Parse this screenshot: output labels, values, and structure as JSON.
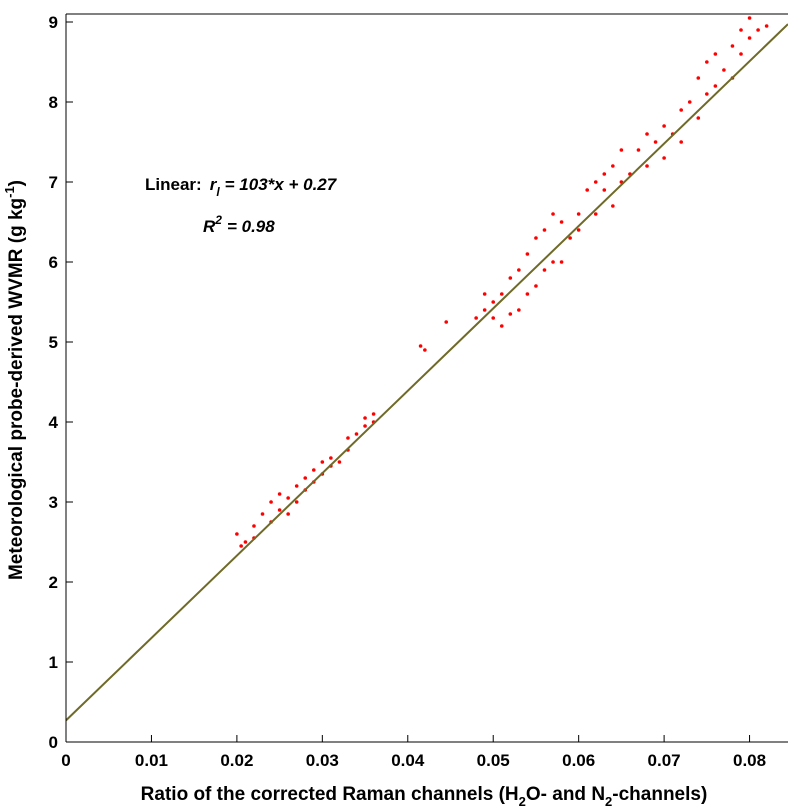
{
  "chart_data": {
    "type": "scatter",
    "x_label": [
      "Ratio of the corrected Raman channels (H",
      "2",
      "O- and N",
      "2",
      "-channels)"
    ],
    "y_label": [
      "Meteorological probe-derived WVMR (g kg",
      "-1",
      ")"
    ],
    "fit_label": {
      "prefix": "Linear:",
      "lhs": "r",
      "lhs_sub": "l",
      "rhs": "= 103*x + 0.27"
    },
    "r2_label": {
      "lhs": "R",
      "lhs_sup": "2",
      "rhs": "= 0.98"
    },
    "xlim": [
      0,
      0.0845
    ],
    "ylim": [
      0,
      9.1
    ],
    "xticks": [
      0,
      0.01,
      0.02,
      0.03,
      0.04,
      0.05,
      0.06,
      0.07,
      0.08
    ],
    "yticks": [
      0,
      1,
      2,
      3,
      4,
      5,
      6,
      7,
      8,
      9
    ],
    "fit": {
      "slope": 103,
      "intercept": 0.27,
      "color": "#6f6a28"
    },
    "series": [
      {
        "color": "#ff0000",
        "x": [
          0.02,
          0.0205,
          0.021,
          0.022,
          0.022,
          0.023,
          0.024,
          0.024,
          0.025,
          0.025,
          0.026,
          0.026,
          0.027,
          0.027,
          0.028,
          0.028,
          0.029,
          0.029,
          0.03,
          0.03,
          0.031,
          0.031,
          0.032,
          0.033,
          0.033,
          0.034,
          0.035,
          0.035,
          0.036,
          0.036,
          0.0415,
          0.042,
          0.0445,
          0.048,
          0.049,
          0.049,
          0.05,
          0.05,
          0.051,
          0.051,
          0.052,
          0.052,
          0.053,
          0.053,
          0.054,
          0.054,
          0.055,
          0.055,
          0.056,
          0.056,
          0.057,
          0.057,
          0.058,
          0.058,
          0.059,
          0.06,
          0.06,
          0.061,
          0.062,
          0.062,
          0.063,
          0.063,
          0.064,
          0.064,
          0.065,
          0.065,
          0.066,
          0.067,
          0.068,
          0.068,
          0.069,
          0.07,
          0.07,
          0.071,
          0.072,
          0.072,
          0.073,
          0.074,
          0.074,
          0.075,
          0.075,
          0.076,
          0.076,
          0.077,
          0.078,
          0.078,
          0.079,
          0.079,
          0.08,
          0.08,
          0.081,
          0.082
        ],
        "values": [
          2.6,
          2.45,
          2.5,
          2.7,
          2.55,
          2.85,
          2.75,
          3.0,
          2.9,
          3.1,
          3.05,
          2.85,
          3.2,
          3.0,
          3.15,
          3.3,
          3.25,
          3.4,
          3.35,
          3.5,
          3.45,
          3.55,
          3.5,
          3.65,
          3.8,
          3.85,
          3.95,
          4.05,
          4.0,
          4.1,
          4.95,
          4.9,
          5.25,
          5.3,
          5.6,
          5.4,
          5.5,
          5.3,
          5.2,
          5.6,
          5.35,
          5.8,
          5.9,
          5.4,
          6.1,
          5.6,
          5.7,
          6.3,
          5.9,
          6.4,
          6.0,
          6.6,
          6.5,
          6.0,
          6.3,
          6.6,
          6.4,
          6.9,
          6.6,
          7.0,
          6.9,
          7.1,
          6.7,
          7.2,
          7.0,
          7.4,
          7.1,
          7.4,
          7.2,
          7.6,
          7.5,
          7.3,
          7.7,
          7.6,
          7.5,
          7.9,
          8.0,
          7.8,
          8.3,
          8.1,
          8.5,
          8.2,
          8.6,
          8.4,
          8.3,
          8.7,
          8.6,
          8.9,
          8.8,
          9.05,
          8.9,
          8.95
        ]
      }
    ]
  }
}
